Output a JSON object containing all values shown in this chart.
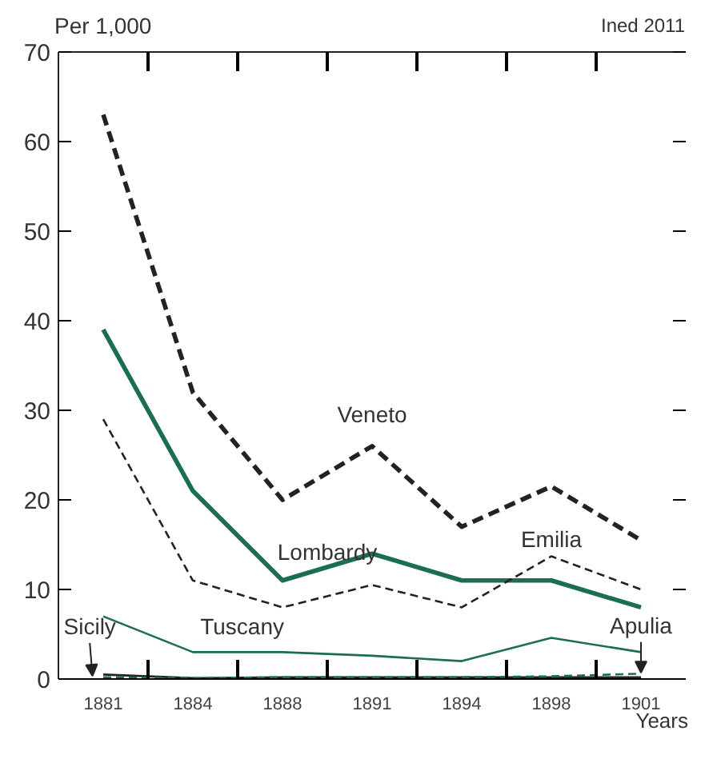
{
  "chart_data": {
    "type": "line",
    "xlabel": "Years",
    "ylabel": "Per 1,000",
    "annotations": [
      "Ined 2011"
    ],
    "categories": [
      "1881",
      "1884",
      "1888",
      "1891",
      "1894",
      "1898",
      "1901"
    ],
    "ylim": [
      0,
      70
    ],
    "yticks": [
      0,
      10,
      20,
      30,
      40,
      50,
      60,
      70
    ],
    "grid": false,
    "legend": false,
    "marker": "none",
    "series": [
      {
        "name": "Veneto",
        "color": "#222222",
        "line_style": "dashed",
        "values": [
          63,
          32,
          20,
          26,
          17,
          21.5,
          15.5
        ]
      },
      {
        "name": "Lombardy",
        "color": "#1b6e4f",
        "line_style": "solid",
        "values": [
          39,
          21,
          11,
          14,
          11,
          11,
          8
        ]
      },
      {
        "name": "Emilia",
        "color": "#222222",
        "line_style": "dashed",
        "values": [
          29,
          11,
          8,
          10.5,
          8,
          13.7,
          10
        ]
      },
      {
        "name": "Tuscany",
        "color": "#1b6e4f",
        "line_style": "solid",
        "values": [
          7,
          3,
          3,
          2.6,
          2,
          4.6,
          3
        ]
      },
      {
        "name": "Sicily",
        "color": "#222222",
        "line_style": "solid",
        "values": [
          0.5,
          0.1,
          0.2,
          0.2,
          0.2,
          0.2,
          0.2
        ]
      },
      {
        "name": "Apulia",
        "color": "#1b6e4f",
        "line_style": "dashed",
        "values": [
          0.2,
          0.1,
          0.2,
          0.2,
          0.2,
          0.3,
          0.6
        ]
      }
    ]
  }
}
